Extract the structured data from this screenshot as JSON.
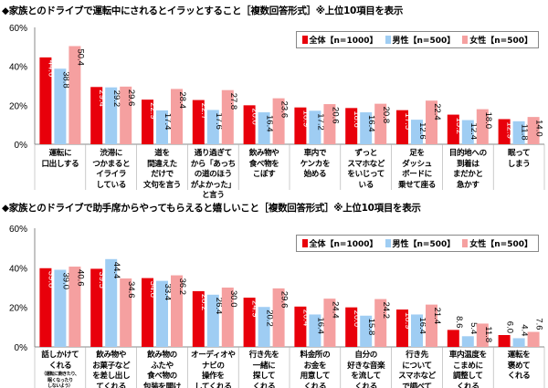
{
  "chart_data": [
    {
      "type": "bar",
      "title": "◆家族とのドライブで運転中にされるとイラッとすること［複数回答形式］※上位10項目を表示",
      "categories": [
        "運転に\n口出しする",
        "渋滞に\nつかまると\nイライラ\nしている",
        "道を\n間違えた\nだけで\n文句を言う",
        "通り過ぎて\nから「あっち\nの道のほう\nがよかった」\nと言う",
        "飲み物や\n食べ物を\nこぼす",
        "車内で\nケンカを\n始める",
        "ずっと\nスマホなど\nをいじって\nいる",
        "足を\nダッシュ\nボードに\n乗せて座る",
        "目的地への\n到着は\nまだかと\n急かす",
        "眠って\nしまう"
      ],
      "category_notes": [
        "",
        "",
        "",
        "",
        "",
        "",
        "",
        "",
        "",
        ""
      ],
      "series": [
        {
          "name": "全体【n=1000】",
          "color": "#e8000b",
          "values": [
            44.6,
            29.4,
            22.9,
            22.7,
            20.0,
            18.9,
            18.6,
            17.5,
            15.2,
            12.9
          ]
        },
        {
          "name": "男性【n=500】",
          "color": "#9fcdf3",
          "values": [
            38.8,
            29.2,
            17.4,
            17.6,
            16.4,
            17.2,
            16.4,
            12.6,
            12.4,
            11.8
          ]
        },
        {
          "name": "女性【n=500】",
          "color": "#f5a0a0",
          "values": [
            50.4,
            29.6,
            28.4,
            27.8,
            23.6,
            20.6,
            20.8,
            22.4,
            18.0,
            14.0
          ]
        }
      ],
      "yticks": [
        "0%",
        "20%",
        "40%",
        "60%"
      ],
      "ylim": [
        0,
        60
      ],
      "legend": "top-right",
      "xlabel": "",
      "ylabel": ""
    },
    {
      "type": "bar",
      "title": "◆家族とのドライブで助手席からやってもらえると嬉しいこと［複数回答形式］※上位10項目を表示",
      "categories": [
        "話しかけて\nくれる",
        "飲み物や\nお菓子など\nを差し出し\nてくれる",
        "飲み物の\nふたや\n食べ物の\n包装を開け\nてくれる",
        "オーディオや\nナビの\n操作を\nしてくれる",
        "行き先を\n一緒に\n探して\nくれる",
        "料金所の\nお金を\n用意して\nくれる",
        "自分の\n好きな音楽\nを流して\nくれる",
        "行き先\nについて\nスマホなど\nで調べて\nくれる",
        "車内温度を\nこまめに\n調整して\nくれる",
        "運転を\n褒めて\nくれる"
      ],
      "category_notes": [
        "（運転に飽きたり、\n眠くなったり\nしないよう）",
        "",
        "",
        "",
        "",
        "",
        "",
        "",
        "",
        ""
      ],
      "series": [
        {
          "name": "全体【n=1000】",
          "color": "#e8000b",
          "values": [
            39.8,
            39.5,
            34.8,
            28.2,
            24.9,
            20.4,
            20.0,
            18.9,
            8.6,
            6.0
          ]
        },
        {
          "name": "男性【n=500】",
          "color": "#9fcdf3",
          "values": [
            39.0,
            44.4,
            33.4,
            26.4,
            20.2,
            16.4,
            15.8,
            16.4,
            5.4,
            4.4
          ]
        },
        {
          "name": "女性【n=500】",
          "color": "#f5a0a0",
          "values": [
            40.6,
            34.6,
            36.2,
            30.0,
            29.6,
            24.4,
            24.2,
            21.4,
            11.8,
            7.6
          ]
        }
      ],
      "yticks": [
        "0%",
        "20%",
        "40%",
        "60%"
      ],
      "ylim": [
        0,
        60
      ],
      "legend": "top-right",
      "xlabel": "",
      "ylabel": ""
    }
  ]
}
